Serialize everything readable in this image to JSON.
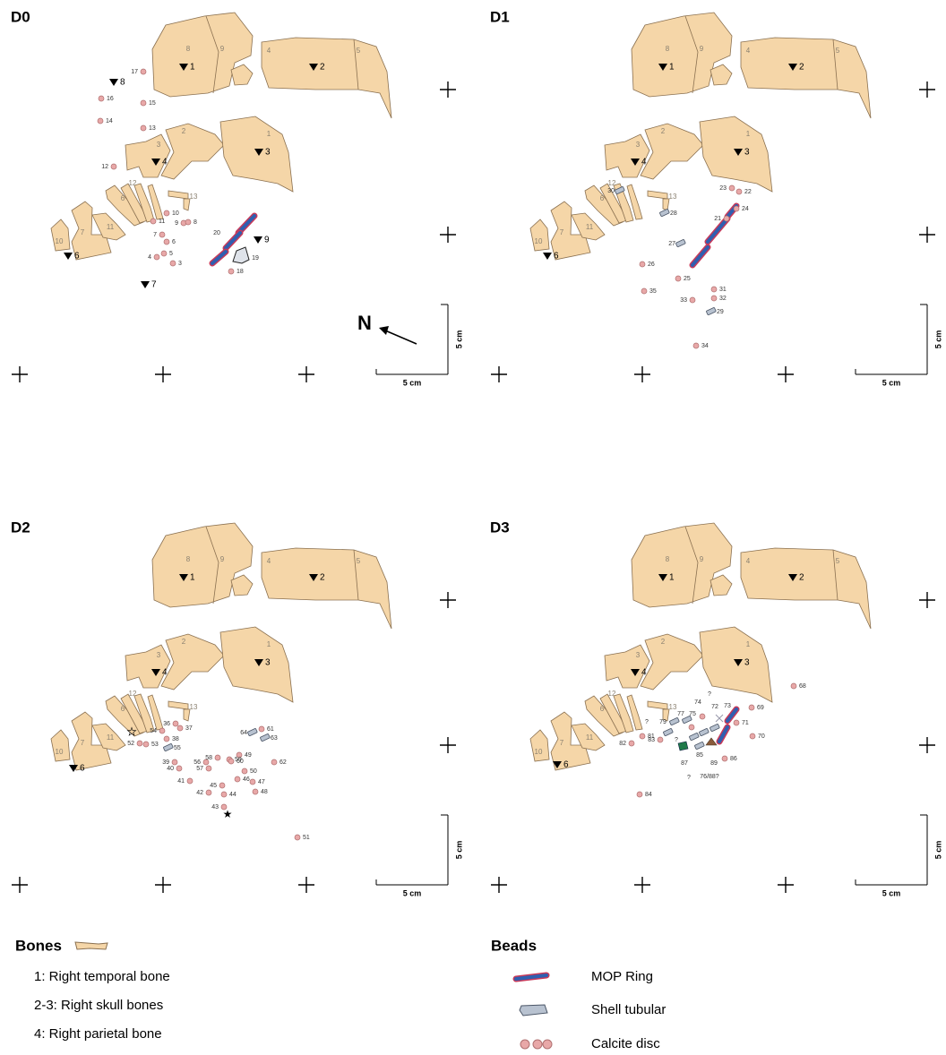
{
  "panels": [
    {
      "title": "D0",
      "bone_labels": [
        "8",
        "9",
        "4",
        "5",
        "3",
        "2",
        "1",
        "12",
        "13",
        "6",
        "7",
        "11",
        "10"
      ],
      "markers": [
        "1",
        "2",
        "3",
        "4",
        "8",
        "9",
        "6",
        "7"
      ],
      "bead_labels": [
        "17",
        "16",
        "15",
        "14",
        "13",
        "12",
        "10",
        "11",
        "9",
        "8",
        "7",
        "6",
        "5",
        "4",
        "3",
        "18",
        "19",
        "20"
      ],
      "scale_bar": {
        "vertical": "5 cm",
        "horizontal": "5 cm"
      },
      "north_label": "N"
    },
    {
      "title": "D1",
      "bone_labels": [
        "8",
        "9",
        "4",
        "5",
        "3",
        "2",
        "1",
        "12",
        "13",
        "6",
        "7",
        "11",
        "10"
      ],
      "markers": [
        "1",
        "2",
        "3",
        "4",
        "6"
      ],
      "bead_labels": [
        "23",
        "22",
        "24",
        "21",
        "30",
        "28",
        "27",
        "26",
        "25",
        "31",
        "32",
        "33",
        "35",
        "29",
        "34"
      ],
      "scale_bar": {
        "vertical": "5 cm",
        "horizontal": "5 cm"
      }
    },
    {
      "title": "D2",
      "bone_labels": [
        "8",
        "9",
        "4",
        "5",
        "3",
        "2",
        "1",
        "12",
        "13",
        "6",
        "7",
        "11",
        "10"
      ],
      "markers": [
        "1",
        "2",
        "3",
        "4",
        "6"
      ],
      "bead_labels": [
        "54",
        "36",
        "37",
        "38",
        "52",
        "53",
        "55",
        "39",
        "40",
        "41",
        "42",
        "43",
        "44",
        "45",
        "46",
        "47",
        "48",
        "49",
        "50",
        "56",
        "57",
        "58",
        "59",
        "60",
        "61",
        "62",
        "63",
        "64",
        "51"
      ],
      "scale_bar": {
        "vertical": "5 cm",
        "horizontal": "5 cm"
      }
    },
    {
      "title": "D3",
      "bone_labels": [
        "8",
        "9",
        "4",
        "5",
        "3",
        "2",
        "1",
        "12",
        "13",
        "6",
        "7",
        "11",
        "10"
      ],
      "markers": [
        "1",
        "2",
        "3",
        "4",
        "6"
      ],
      "bead_labels": [
        "68",
        "69",
        "70",
        "71",
        "72",
        "73",
        "74",
        "?",
        "75",
        "77",
        "79",
        "?",
        "?",
        "?",
        "81",
        "82",
        "83",
        "84",
        "85",
        "86",
        "87",
        "89",
        "76/88?"
      ],
      "scale_bar": {
        "vertical": "5 cm",
        "horizontal": "5 cm"
      }
    }
  ],
  "legend": {
    "bones_title": "Bones",
    "bones_items": [
      "1: Right temporal bone",
      "2-3: Right skull bones",
      "4: Right parietal bone"
    ],
    "beads_title": "Beads",
    "beads_items": [
      "MOP Ring",
      "Shell tubular",
      "Calcite disc"
    ]
  }
}
